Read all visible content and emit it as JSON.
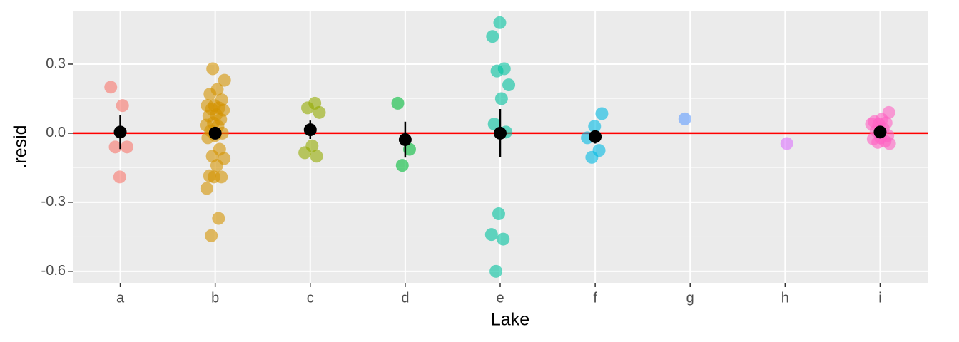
{
  "chart_data": {
    "type": "strip",
    "x_label": "Lake",
    "y_label": ".resid",
    "categories": [
      "a",
      "b",
      "c",
      "d",
      "e",
      "f",
      "g",
      "h",
      "i"
    ],
    "colors": [
      "#F8766D",
      "#D39200",
      "#93AA00",
      "#00BA38",
      "#00C19F",
      "#00B9E3",
      "#619CFF",
      "#DB72FB",
      "#FF61C3"
    ],
    "points": [
      [
        0.2,
        0.12,
        -0.06,
        -0.06,
        -0.19
      ],
      [
        0.28,
        0.23,
        0.19,
        0.17,
        0.145,
        0.12,
        0.12,
        0.11,
        0.105,
        0.1,
        0.08,
        0.075,
        0.06,
        0.045,
        0.035,
        0.03,
        0.01,
        0,
        -0.01,
        -0.02,
        -0.07,
        -0.1,
        -0.11,
        -0.14,
        -0.185,
        -0.19,
        -0.19,
        -0.24,
        -0.37,
        -0.445
      ],
      [
        0.13,
        0.11,
        0.09,
        -0.055,
        -0.085,
        -0.1
      ],
      [
        0.13,
        -0.07,
        -0.14
      ],
      [
        0.48,
        0.42,
        0.28,
        0.27,
        0.21,
        0.15,
        0.04,
        0.005,
        -0.35,
        -0.44,
        -0.46,
        -0.6
      ],
      [
        0.085,
        0.03,
        -0.02,
        -0.075,
        -0.105
      ],
      [
        0.062
      ],
      [
        -0.045
      ],
      [
        0.09,
        0.06,
        0.05,
        0.045,
        0.04,
        0.04,
        0.02,
        0.01,
        -0.01,
        -0.02,
        -0.025,
        -0.035,
        -0.04,
        -0.045
      ]
    ],
    "means": [
      0.005,
      0,
      0.015,
      -0.028,
      0,
      -0.015,
      null,
      null,
      0.005
    ],
    "errors": [
      0.074,
      0.02,
      0.04,
      0.078,
      0.105,
      0.03,
      null,
      null,
      0.015
    ],
    "hline": 0,
    "hline_color": "#FF0000",
    "ylim": [
      -0.65,
      0.532
    ],
    "yticks": [
      -0.6,
      -0.3,
      {
        "value": 0,
        "label": "0.0"
      },
      0.3
    ],
    "grid": true
  }
}
